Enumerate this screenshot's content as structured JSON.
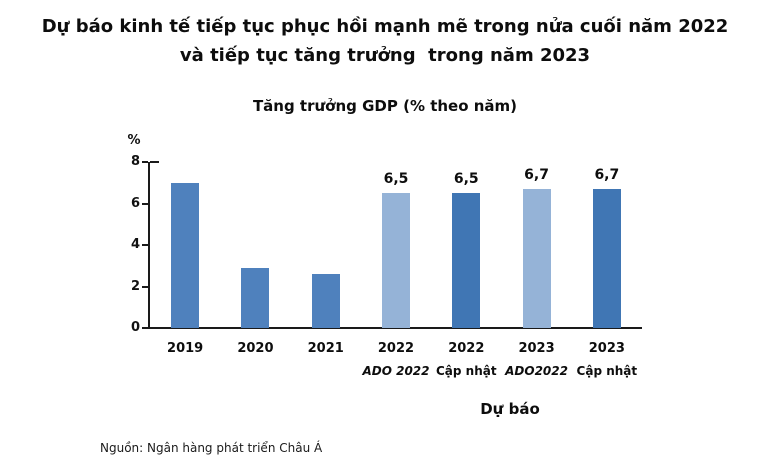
{
  "title": {
    "line1": "Dự báo kinh tế tiếp tục phục hồi mạnh mẽ trong nửa cuối năm 2022",
    "line2": "và tiếp tục tăng trưởng  trong năm 2023"
  },
  "chart_title": "Tăng trưởng GDP (% theo năm)",
  "axis": {
    "unit_label": "%",
    "yticks": [
      8,
      6,
      4,
      2,
      0
    ],
    "ymax": 8
  },
  "forecast_label": "Dự báo",
  "source": "Nguồn: Ngân hàng phát triển Châu Á",
  "colors": {
    "historical": "#4F81BD",
    "ado": "#95B3D7",
    "capnhat": "#4076B4"
  },
  "chart_data": {
    "type": "bar",
    "title": "Tăng trưởng GDP (% theo năm)",
    "ylabel": "%",
    "ylim": [
      0,
      8
    ],
    "grid": false,
    "legend": false,
    "categories": [
      "2019",
      "2020",
      "2021",
      "2022 ADO 2022",
      "2022 Cập nhật",
      "2023 ADO2022",
      "2023 Cập nhật"
    ],
    "values": [
      7.0,
      2.9,
      2.6,
      6.5,
      6.5,
      6.7,
      6.7
    ],
    "bars": [
      {
        "year": "2019",
        "sub": "",
        "sub_italic": false,
        "value": 7.0,
        "label": "",
        "color": "historical"
      },
      {
        "year": "2020",
        "sub": "",
        "sub_italic": false,
        "value": 2.9,
        "label": "",
        "color": "historical"
      },
      {
        "year": "2021",
        "sub": "",
        "sub_italic": false,
        "value": 2.6,
        "label": "",
        "color": "historical"
      },
      {
        "year": "2022",
        "sub": "ADO 2022",
        "sub_italic": true,
        "value": 6.5,
        "label": "6,5",
        "color": "ado"
      },
      {
        "year": "2022",
        "sub": "Cập nhật",
        "sub_italic": false,
        "value": 6.5,
        "label": "6,5",
        "color": "capnhat"
      },
      {
        "year": "2023",
        "sub": "ADO2022",
        "sub_italic": true,
        "value": 6.7,
        "label": "6,7",
        "color": "ado"
      },
      {
        "year": "2023",
        "sub": "Cập nhật",
        "sub_italic": false,
        "value": 6.7,
        "label": "6,7",
        "color": "capnhat"
      }
    ]
  }
}
